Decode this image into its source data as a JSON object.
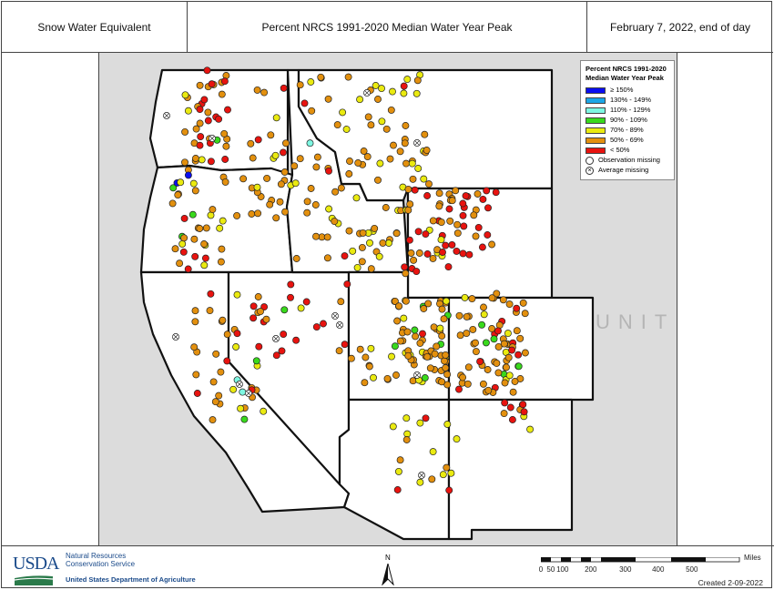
{
  "header": {
    "left": "Snow Water Equivalent",
    "center": "Percent NRCS 1991-2020 Median Water Year Peak",
    "right": "February 7, 2022, end of day"
  },
  "legend": {
    "title": "Percent NRCS 1991-2020 Median Water Year Peak",
    "items": [
      {
        "label": "≥ 150%",
        "color": "#0a0ef0"
      },
      {
        "label": "130% - 149%",
        "color": "#1ca6e6"
      },
      {
        "label": "110% - 129%",
        "color": "#7ef7e2"
      },
      {
        "label": "90% - 109%",
        "color": "#39d91c"
      },
      {
        "label": "70% - 89%",
        "color": "#eaea10"
      },
      {
        "label": "50% - 69%",
        "color": "#e3900e"
      },
      {
        "label": "< 50%",
        "color": "#e8130f"
      }
    ],
    "observation_missing": "Observation missing",
    "average_missing": "Average missing"
  },
  "map": {
    "background_text": "UNITED S"
  },
  "footer": {
    "usda": "USDA",
    "agency_line1": "Natural Resources",
    "agency_line2": "Conservation Service",
    "department": "United States Department of Agriculture",
    "north": "N",
    "scale_unit": "Miles",
    "scale_ticks": [
      "0",
      "50",
      "100",
      "200",
      "300",
      "400",
      "500"
    ],
    "created": "Created 2-09-2022"
  }
}
